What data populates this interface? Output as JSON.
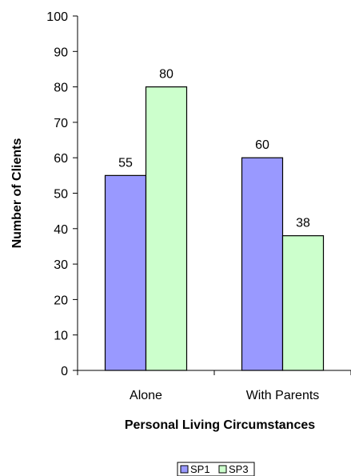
{
  "chart_data": {
    "type": "bar",
    "title": "",
    "xlabel": "Personal Living Circumstances",
    "ylabel": "Number of Clients",
    "categories": [
      "Alone",
      "With Parents"
    ],
    "series": [
      {
        "name": "SP1",
        "values": [
          55,
          60
        ],
        "color": "#9999ff"
      },
      {
        "name": "SP3",
        "values": [
          80,
          38
        ],
        "color": "#ccffcc"
      }
    ],
    "ylim": [
      0,
      100
    ],
    "yticks": [
      0,
      10,
      20,
      30,
      40,
      50,
      60,
      70,
      80,
      90,
      100
    ],
    "grid": false,
    "legend_position": "bottom"
  }
}
